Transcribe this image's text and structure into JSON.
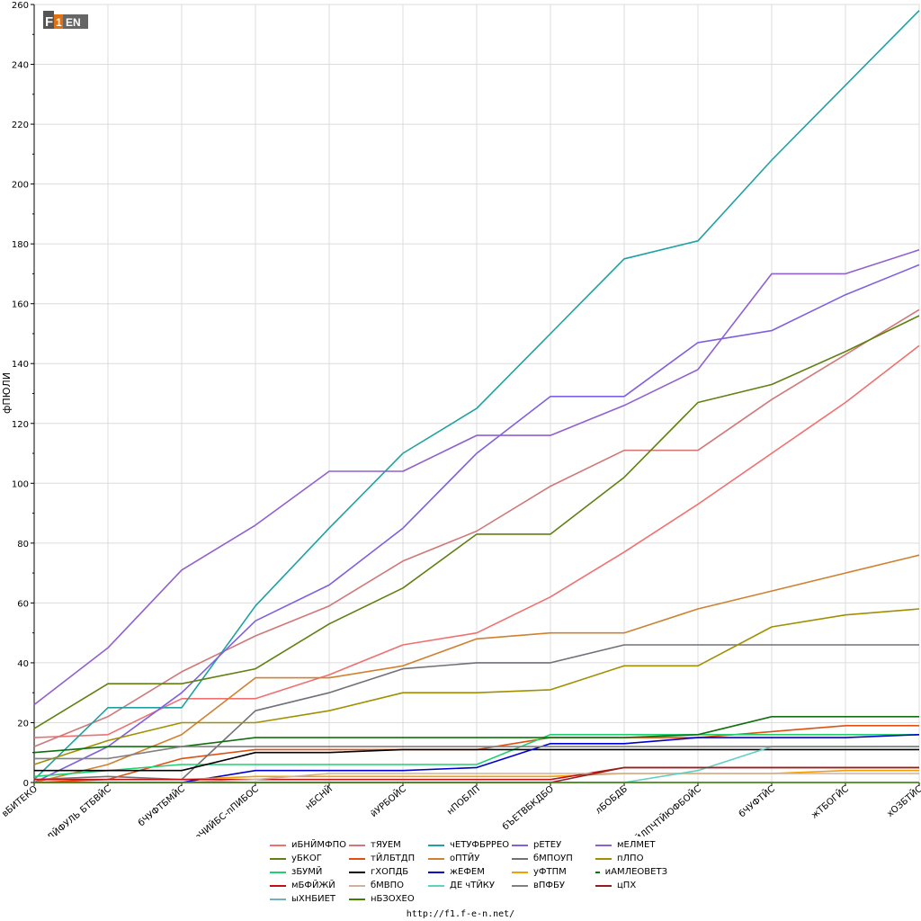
{
  "footer": {
    "url": "http://f1.f-e-n.net/"
  },
  "logo": {
    "text_left": "F",
    "text_mid": "1",
    "text_right": "EN"
  },
  "chart_data": {
    "type": "line",
    "ylabel": "фПЮЛИ",
    "ylim": [
      0,
      260
    ],
    "yticks": [
      0,
      20,
      40,
      60,
      80,
      100,
      120,
      140,
      160,
      180,
      200,
      220,
      240,
      260
    ],
    "categories": [
      "вБИТЕКО",
      "уБХДЙФУЛЬ БТБВЙС",
      "бЧУФТБМЙС",
      "еЧИЙБС-пПИБОС",
      "нБСНЙ",
      "йУРБОЙС",
      "нПОБЛП",
      "бЪЕТВБКДБО",
      "лБОБДБ",
      "лПЙЛПЧТЙЮФБОЙС",
      "бЧУФТЙС",
      "жТБОГЙС",
      "хОЗБТЙС"
    ],
    "grid": true,
    "series": [
      {
        "name": "иБНЙМФПО",
        "color": "#f07070",
        "values": [
          15,
          16,
          28,
          28,
          36,
          46,
          50,
          62,
          77,
          93,
          110,
          127,
          146
        ]
      },
      {
        "name": "тЯУЕМ",
        "color": "#d07878",
        "values": [
          12,
          22,
          37,
          49,
          59,
          74,
          84,
          99,
          111,
          111,
          128,
          143,
          158
        ]
      },
      {
        "name": "чЕТУФБРРЕО",
        "color": "#20a0a0",
        "values": [
          1,
          25,
          25,
          59,
          85,
          110,
          125,
          150,
          175,
          181,
          208,
          233,
          258
        ]
      },
      {
        "name": "рЕТЕУ",
        "color": "#8060e0",
        "values": [
          0,
          12,
          30,
          54,
          66,
          85,
          110,
          129,
          129,
          147,
          151,
          163,
          173
        ]
      },
      {
        "name": "мЕЛМЕТ",
        "color": "#9060d0",
        "values": [
          26,
          45,
          71,
          86,
          104,
          104,
          116,
          116,
          126,
          138,
          170,
          170,
          178
        ]
      },
      {
        "name": "уБКОГ",
        "color": "#608010",
        "values": [
          18,
          33,
          33,
          38,
          53,
          65,
          83,
          83,
          102,
          127,
          133,
          144,
          156
        ]
      },
      {
        "name": "тЙЛБТДП",
        "color": "#e05010",
        "values": [
          0,
          1,
          8,
          11,
          11,
          11,
          11,
          15,
          15,
          15,
          17,
          19,
          19
        ]
      },
      {
        "name": "оПТЙУ",
        "color": "#d08030",
        "values": [
          0,
          6,
          16,
          35,
          35,
          39,
          48,
          50,
          50,
          58,
          64,
          70,
          76
        ]
      },
      {
        "name": "бМПОУП",
        "color": "#707078",
        "values": [
          1,
          2,
          1,
          24,
          30,
          38,
          40,
          40,
          46,
          46,
          46,
          46,
          46
        ]
      },
      {
        "name": "пЛПО",
        "color": "#a09000",
        "values": [
          6,
          14,
          20,
          20,
          24,
          30,
          30,
          31,
          39,
          39,
          52,
          56,
          58
        ]
      },
      {
        "name": "зБУМЙ",
        "color": "#20d070",
        "values": [
          2,
          4,
          6,
          6,
          6,
          6,
          6,
          16,
          16,
          16,
          16,
          16,
          16
        ]
      },
      {
        "name": "гХОПДБ",
        "color": "#000000",
        "values": [
          4,
          4,
          4,
          10,
          10,
          11,
          11,
          11,
          11,
          11,
          11,
          11,
          11
        ]
      },
      {
        "name": "жЕФЕМ",
        "color": "#0000d0",
        "values": [
          0,
          0,
          0,
          4,
          4,
          4,
          5,
          13,
          13,
          15,
          15,
          15,
          16
        ]
      },
      {
        "name": "уФТПМ",
        "color": "#f0a000",
        "values": [
          1,
          1,
          1,
          2,
          2,
          2,
          2,
          2,
          3,
          3,
          3,
          4,
          4
        ]
      },
      {
        "name": "иАМЛЕОВЕТЗ",
        "color": "#107010",
        "values": [
          10,
          12,
          12,
          15,
          15,
          15,
          15,
          15,
          15,
          16,
          22,
          22,
          22
        ]
      },
      {
        "name": "мБФЙЖЙ",
        "color": "#c01010",
        "values": [
          1,
          1,
          1,
          1,
          1,
          1,
          1,
          1,
          5,
          5,
          5,
          5,
          5
        ]
      },
      {
        "name": "бМВПО",
        "color": "#d0b0a0",
        "values": [
          0,
          0,
          0,
          1,
          3,
          3,
          3,
          3,
          3,
          3,
          3,
          3,
          3
        ]
      },
      {
        "name": "ДЕ чТЙКУ",
        "color": "#60d0c0",
        "values": [
          0,
          0,
          0,
          0,
          0,
          0,
          0,
          0,
          0,
          4,
          12,
          12,
          12
        ]
      },
      {
        "name": "вПФБУ",
        "color": "#808080",
        "values": [
          8,
          8,
          12,
          12,
          12,
          12,
          12,
          12,
          12,
          12,
          12,
          12,
          12
        ]
      },
      {
        "name": "цПХ",
        "color": "#902020",
        "values": [
          0,
          0,
          0,
          0,
          0,
          0,
          0,
          0,
          5,
          5,
          5,
          5,
          5
        ]
      },
      {
        "name": "ыХНБИЕТ",
        "color": "#70b0c0",
        "values": [
          0,
          0,
          0,
          0,
          0,
          0,
          0,
          0,
          0,
          0,
          0,
          0,
          0
        ]
      },
      {
        "name": "нБЗОХЕО",
        "color": "#408000",
        "values": [
          0,
          0,
          0,
          0,
          0,
          0,
          0,
          0,
          0,
          0,
          0,
          0,
          0
        ]
      }
    ],
    "legend_order": [
      "иБНЙМФПО",
      "тЯУЕМ",
      "чЕТУФБРРЕО",
      "рЕТЕУ",
      "мЕЛМЕТ",
      "уБКОГ",
      "тЙЛБТДП",
      "оПТЙУ",
      "бМПОУП",
      "пЛПО",
      "зБУМЙ",
      "гХОПДБ",
      "жЕФЕМ",
      "уФТПМ",
      "иАМЛЕОВЕТЗ",
      "мБФЙЖЙ",
      "бМВПО",
      "ДЕ чТЙКУ",
      "вПФБУ",
      "цПХ",
      "ыХНБИЕТ",
      "нБЗОХЕО"
    ],
    "legend_placement": "bottom"
  }
}
